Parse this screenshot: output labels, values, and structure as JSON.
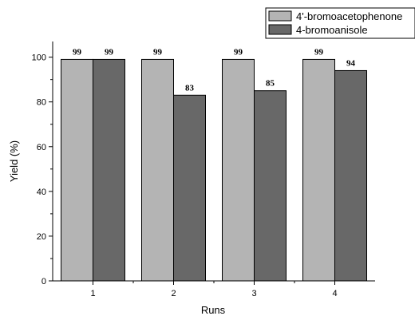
{
  "chart_data": {
    "type": "bar",
    "xlabel": "Runs",
    "ylabel": "Yield (%)",
    "categories": [
      "1",
      "2",
      "3",
      "4"
    ],
    "ylim": [
      0,
      107
    ],
    "yticks": [
      "0",
      "20",
      "40",
      "60",
      "80",
      "100"
    ],
    "legend_position": "top-right",
    "series": [
      {
        "name": "4'-bromoacetophenone",
        "values": [
          99,
          99,
          99,
          99
        ],
        "labels": [
          "99",
          "99",
          "99",
          "99"
        ],
        "color": "#b4b4b4"
      },
      {
        "name": "4-bromoanisole",
        "values": [
          99,
          83,
          85,
          94
        ],
        "labels": [
          "99",
          "83",
          "85",
          "94"
        ],
        "color": "#686868"
      }
    ]
  }
}
